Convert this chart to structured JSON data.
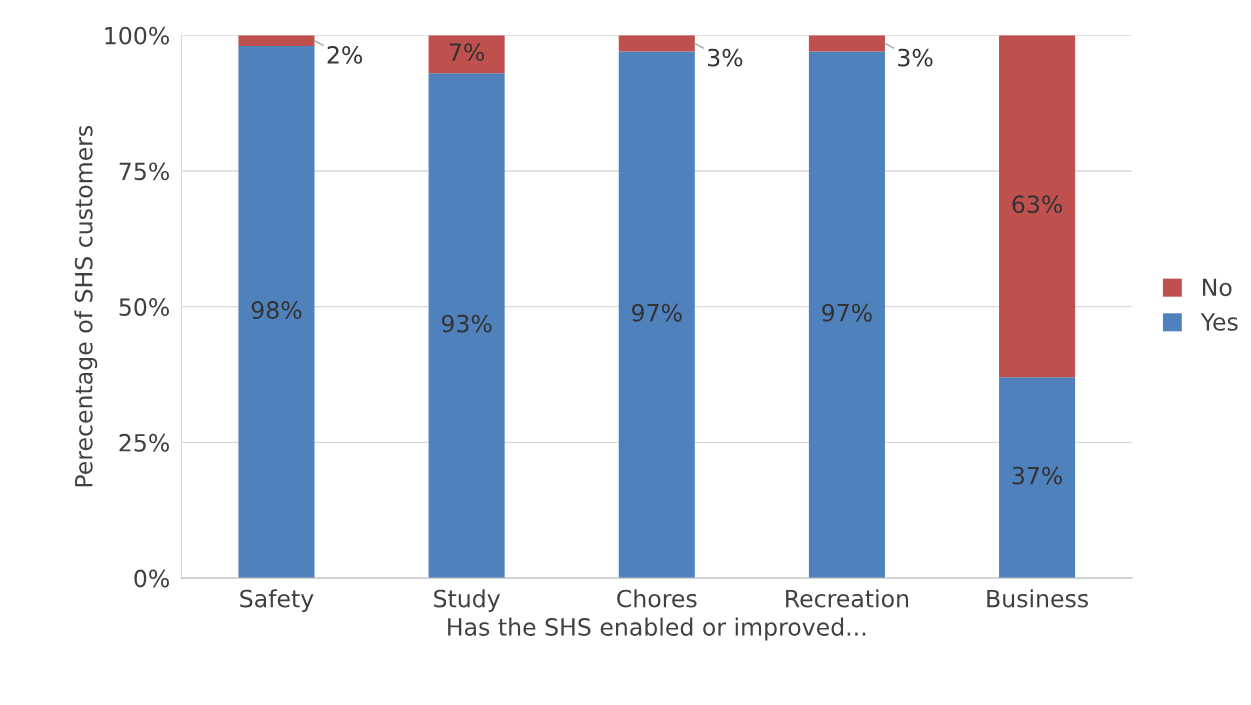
{
  "chart_data": {
    "type": "bar",
    "stacked": true,
    "xlabel": "Has the SHS enabled or improved...",
    "ylabel": "Perecentage of SHS customers",
    "categories": [
      "Safety",
      "Study",
      "Chores",
      "Recreation",
      "Business"
    ],
    "series": [
      {
        "name": "Yes",
        "color": "#4f81bd",
        "values": [
          98,
          93,
          97,
          97,
          37
        ],
        "value_labels": [
          "98%",
          "93%",
          "97%",
          "97%",
          "37%"
        ]
      },
      {
        "name": "No",
        "color": "#c0504d",
        "values": [
          2,
          7,
          3,
          3,
          63
        ],
        "value_labels": [
          "2%",
          "7%",
          "3%",
          "3%",
          "63%"
        ]
      }
    ],
    "ylim": [
      0,
      100
    ],
    "yticks": [
      {
        "value": 0,
        "label": "0%"
      },
      {
        "value": 25,
        "label": "25%"
      },
      {
        "value": 50,
        "label": "50%"
      },
      {
        "value": 75,
        "label": "75%"
      },
      {
        "value": 100,
        "label": "100%"
      }
    ],
    "grid": "y",
    "legend": "right"
  }
}
